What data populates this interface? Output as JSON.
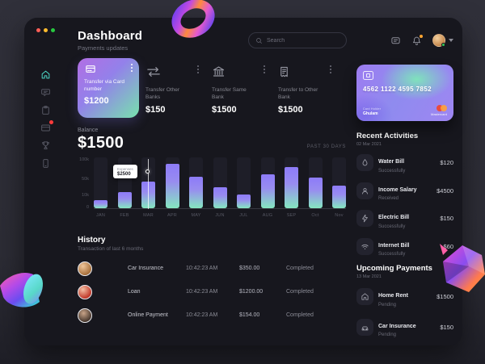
{
  "window": {
    "traffic_lights": [
      "#ff5f57",
      "#febc2e",
      "#28c840"
    ]
  },
  "sidebar": {
    "icons": [
      "home",
      "chat",
      "clipboard",
      "credit-card",
      "trophy",
      "mobile"
    ],
    "active": "home",
    "notification_on": "credit-card"
  },
  "header": {
    "title": "Dashboard",
    "subtitle": "Payments updates",
    "search_placeholder": "Search",
    "action_icons": [
      "chat",
      "bell",
      "avatar"
    ]
  },
  "transfers": {
    "items": [
      {
        "icon": "credit-card",
        "label": "Transfer via Card number",
        "amount": "$1200",
        "featured": true
      },
      {
        "icon": "transfer-arrows",
        "label": "Transfer Other Banks",
        "amount": "$150"
      },
      {
        "icon": "bank",
        "label": "Transfer Same Bank",
        "amount": "$1500"
      },
      {
        "icon": "receipt",
        "label": "Transfer to Other Bank",
        "amount": "$1500"
      }
    ]
  },
  "credit_card": {
    "number": "4562 1122 4595 7852",
    "holder_label": "Card Holder",
    "holder": "Ghulam",
    "brand": "Mastercard"
  },
  "balance": {
    "label": "Balance",
    "amount": "$1500",
    "period": "PAST 30 DAYS"
  },
  "chart_data": {
    "type": "bar",
    "title": "Balance — monthly expenses",
    "categories": [
      "JAN",
      "FEB",
      "MAR",
      "APR",
      "MAY",
      "JUN",
      "JUL",
      "AUG",
      "SEP",
      "Oct",
      "Nov"
    ],
    "values_pct": [
      16,
      32,
      52,
      88,
      62,
      42,
      27,
      66,
      81,
      60,
      45
    ],
    "ytick_labels": [
      "100k",
      "50k",
      "10k",
      "0"
    ],
    "ylim": [
      0,
      100000
    ],
    "grid": false,
    "legend": false,
    "period_label": "PAST 30 DAYS",
    "tooltip": {
      "category": "MAR",
      "label": "Expenses",
      "value": "$2500"
    },
    "bar_gradient": [
      "#8d7bf8",
      "#85e7c0"
    ],
    "track_color": "#1e1e28"
  },
  "history": {
    "title": "History",
    "subtitle": "Transaction of last 6 months",
    "rows": [
      {
        "name": "Car Insurance",
        "time": "10:42:23 AM",
        "amount": "$350.00",
        "status": "Completed"
      },
      {
        "name": "Loan",
        "time": "10:42:23 AM",
        "amount": "$1200.00",
        "status": "Completed"
      },
      {
        "name": "Online Payment",
        "time": "10:42:23 AM",
        "amount": "$154.00",
        "status": "Completed"
      }
    ]
  },
  "recent_activities": {
    "title": "Recent Activities",
    "date": "02 Mar 2021",
    "items": [
      {
        "icon": "water-drop",
        "name": "Water Bill",
        "status": "Successfully",
        "amount": "$120"
      },
      {
        "icon": "user",
        "name": "Income Salary",
        "status": "Received",
        "amount": "$4500"
      },
      {
        "icon": "bolt",
        "name": "Electric Bill",
        "status": "Successfully",
        "amount": "$150"
      },
      {
        "icon": "wifi",
        "name": "Internet Bill",
        "status": "Successfully",
        "amount": "$60"
      }
    ]
  },
  "upcoming_payments": {
    "title": "Upcoming Payments",
    "date": "13 Mar 2021",
    "items": [
      {
        "icon": "home",
        "name": "Home Rent",
        "status": "Pending",
        "amount": "$1500"
      },
      {
        "icon": "car",
        "name": "Car Insurance",
        "status": "Pending",
        "amount": "$150"
      }
    ]
  },
  "colors": {
    "accent_teal": "#4cd7c6",
    "gradient_purple": "#b26ee4",
    "gradient_green": "#77e2ad",
    "notification_red": "#ff3b3b",
    "notification_orange": "#ffa531",
    "online_green": "#35c759",
    "mastercard_red": "#ea4b3e",
    "mastercard_orange": "#ff9f3c",
    "window_bg": "#17171e",
    "page_bg": "#2c2c35"
  }
}
